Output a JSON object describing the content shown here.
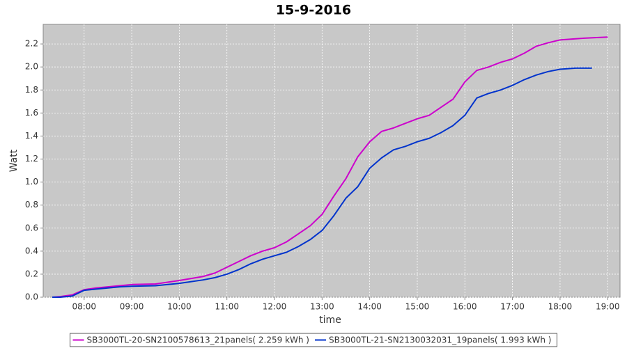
{
  "chart_data": {
    "type": "line",
    "title": "15-9-2016",
    "x_label": "time",
    "y_label": "Watt",
    "xlim": [
      7.14,
      19.26
    ],
    "xticks": [
      {
        "value": 8,
        "label": "08:00"
      },
      {
        "value": 9,
        "label": "09:00"
      },
      {
        "value": 10,
        "label": "10:00"
      },
      {
        "value": 11,
        "label": "11:00"
      },
      {
        "value": 12,
        "label": "12:00"
      },
      {
        "value": 13,
        "label": "13:00"
      },
      {
        "value": 14,
        "label": "14:00"
      },
      {
        "value": 15,
        "label": "15:00"
      },
      {
        "value": 16,
        "label": "16:00"
      },
      {
        "value": 17,
        "label": "17:00"
      },
      {
        "value": 18,
        "label": "18:00"
      },
      {
        "value": 19,
        "label": "19:00"
      }
    ],
    "ylim": [
      0,
      2.37
    ],
    "yticks": [
      {
        "value": 0,
        "label": "0.0"
      },
      0.2,
      0.4,
      0.6,
      0.8,
      {
        "value": 1,
        "label": "1.0"
      },
      1.2,
      1.4,
      1.6,
      1.8,
      {
        "value": 2,
        "label": "2.0"
      },
      2.2
    ],
    "grid": true,
    "legend": "bottom",
    "series": [
      {
        "name": "SB3000TL-20-SN2100578613_21panels( 2.259 kWh )",
        "color": "#cc00cc",
        "x": [
          7.33,
          7.5,
          7.75,
          8.0,
          8.25,
          8.5,
          8.75,
          9.0,
          9.5,
          10.0,
          10.5,
          10.75,
          11.0,
          11.25,
          11.5,
          11.75,
          12.0,
          12.25,
          12.5,
          12.75,
          13.0,
          13.25,
          13.5,
          13.75,
          14.0,
          14.25,
          14.5,
          14.75,
          15.0,
          15.25,
          15.5,
          15.75,
          16.0,
          16.25,
          16.5,
          16.75,
          17.0,
          17.25,
          17.5,
          17.75,
          18.0,
          18.5,
          19.0
        ],
        "values": [
          0.0,
          0.005,
          0.02,
          0.065,
          0.08,
          0.09,
          0.1,
          0.11,
          0.115,
          0.145,
          0.18,
          0.21,
          0.26,
          0.31,
          0.36,
          0.4,
          0.43,
          0.48,
          0.55,
          0.62,
          0.72,
          0.88,
          1.03,
          1.22,
          1.35,
          1.44,
          1.47,
          1.51,
          1.55,
          1.58,
          1.65,
          1.72,
          1.87,
          1.97,
          2.0,
          2.04,
          2.07,
          2.12,
          2.18,
          2.21,
          2.235,
          2.25,
          2.26
        ]
      },
      {
        "name": "SB3000TL-21-SN2130032031_19panels( 1.993 kWh )",
        "color": "#0033cc",
        "x": [
          7.33,
          7.5,
          7.75,
          8.0,
          8.25,
          8.5,
          8.75,
          9.0,
          9.5,
          10.0,
          10.5,
          10.75,
          11.0,
          11.25,
          11.5,
          11.75,
          12.0,
          12.25,
          12.5,
          12.75,
          13.0,
          13.25,
          13.5,
          13.75,
          14.0,
          14.25,
          14.5,
          14.75,
          15.0,
          15.25,
          15.5,
          15.75,
          16.0,
          16.25,
          16.5,
          16.75,
          17.0,
          17.25,
          17.5,
          17.75,
          18.0,
          18.33,
          18.67
        ],
        "values": [
          0.0,
          0.0,
          0.01,
          0.06,
          0.07,
          0.08,
          0.09,
          0.095,
          0.1,
          0.12,
          0.15,
          0.17,
          0.2,
          0.24,
          0.29,
          0.33,
          0.36,
          0.39,
          0.44,
          0.5,
          0.58,
          0.71,
          0.86,
          0.96,
          1.12,
          1.21,
          1.28,
          1.31,
          1.35,
          1.38,
          1.43,
          1.49,
          1.58,
          1.73,
          1.77,
          1.8,
          1.84,
          1.89,
          1.93,
          1.96,
          1.98,
          1.99,
          1.99
        ]
      }
    ]
  }
}
